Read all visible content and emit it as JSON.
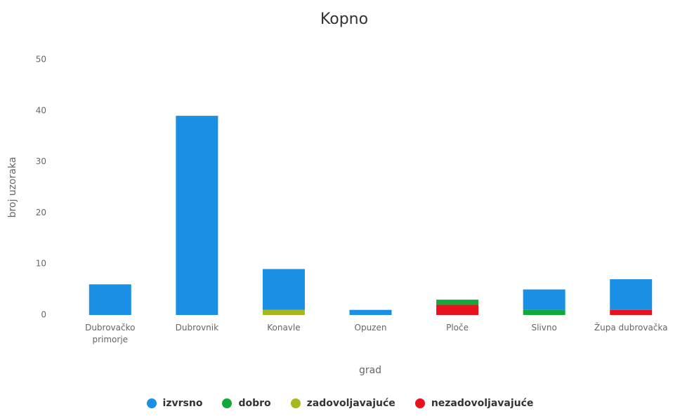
{
  "chart_data": {
    "type": "stacked_bar",
    "title": "Kopno",
    "x_label": "grad",
    "y_label": "broj uzoraka",
    "categories": [
      "Dubrovačko primorje",
      "Dubrovnik",
      "Konavle",
      "Opuzen",
      "Ploče",
      "Slivno",
      "Župa dubrovačka"
    ],
    "series": [
      {
        "name": "izvrsno",
        "color": "#1a8fe3",
        "values": [
          6,
          39,
          8,
          1,
          0,
          4,
          6
        ]
      },
      {
        "name": "dobro",
        "color": "#14a83a",
        "values": [
          0,
          0,
          0,
          0,
          1,
          1,
          0
        ]
      },
      {
        "name": "zadovoljavajuće",
        "color": "#a8b61f",
        "values": [
          0,
          0,
          1,
          0,
          0,
          0,
          0
        ]
      },
      {
        "name": "nezadovoljavajuće",
        "color": "#e8121f",
        "values": [
          0,
          0,
          0,
          0,
          2,
          0,
          1
        ]
      }
    ],
    "ylim": [
      0,
      50
    ],
    "yticks": [
      0,
      10,
      20,
      30,
      40,
      50
    ],
    "grid": false,
    "legend": "bottom"
  }
}
